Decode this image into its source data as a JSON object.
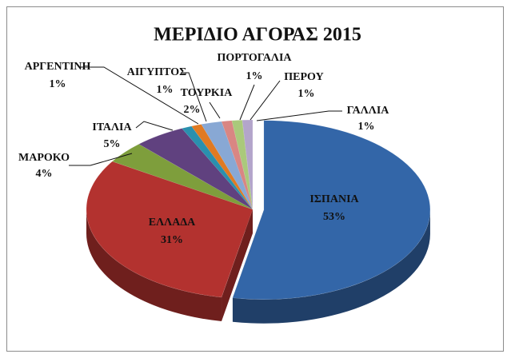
{
  "chart_data": {
    "type": "pie",
    "title": "ΜΕΡΙΔΙΟ ΑΓΟΡΑΣ 2015",
    "categories": [
      "ΙΣΠΑΝΙΑ",
      "ΕΛΛΑΔΑ",
      "ΜΑΡΟΚΟ",
      "ΙΤΑΛΙΑ",
      "ΑΡΓΕΝΤΙΝΗ",
      "ΑΙΓΥΠΤΟΣ",
      "ΤΟΥΡΚΙΑ",
      "ΠΟΡΤΟΓΑΛΙΑ",
      "ΠΕΡΟΥ",
      "ΓΑΛΛΙΑ"
    ],
    "values": [
      53,
      31,
      4,
      5,
      1,
      1,
      2,
      1,
      1,
      1
    ],
    "value_labels": [
      "53%",
      "31%",
      "4%",
      "5%",
      "1%",
      "1%",
      "2%",
      "1%",
      "1%",
      "1%"
    ],
    "colors": [
      "#3366a8",
      "#b3322f",
      "#7e9e3c",
      "#60417f",
      "#2a90ae",
      "#e07a22",
      "#88a8d4",
      "#d98683",
      "#aac97b",
      "#b3a5cb"
    ]
  }
}
